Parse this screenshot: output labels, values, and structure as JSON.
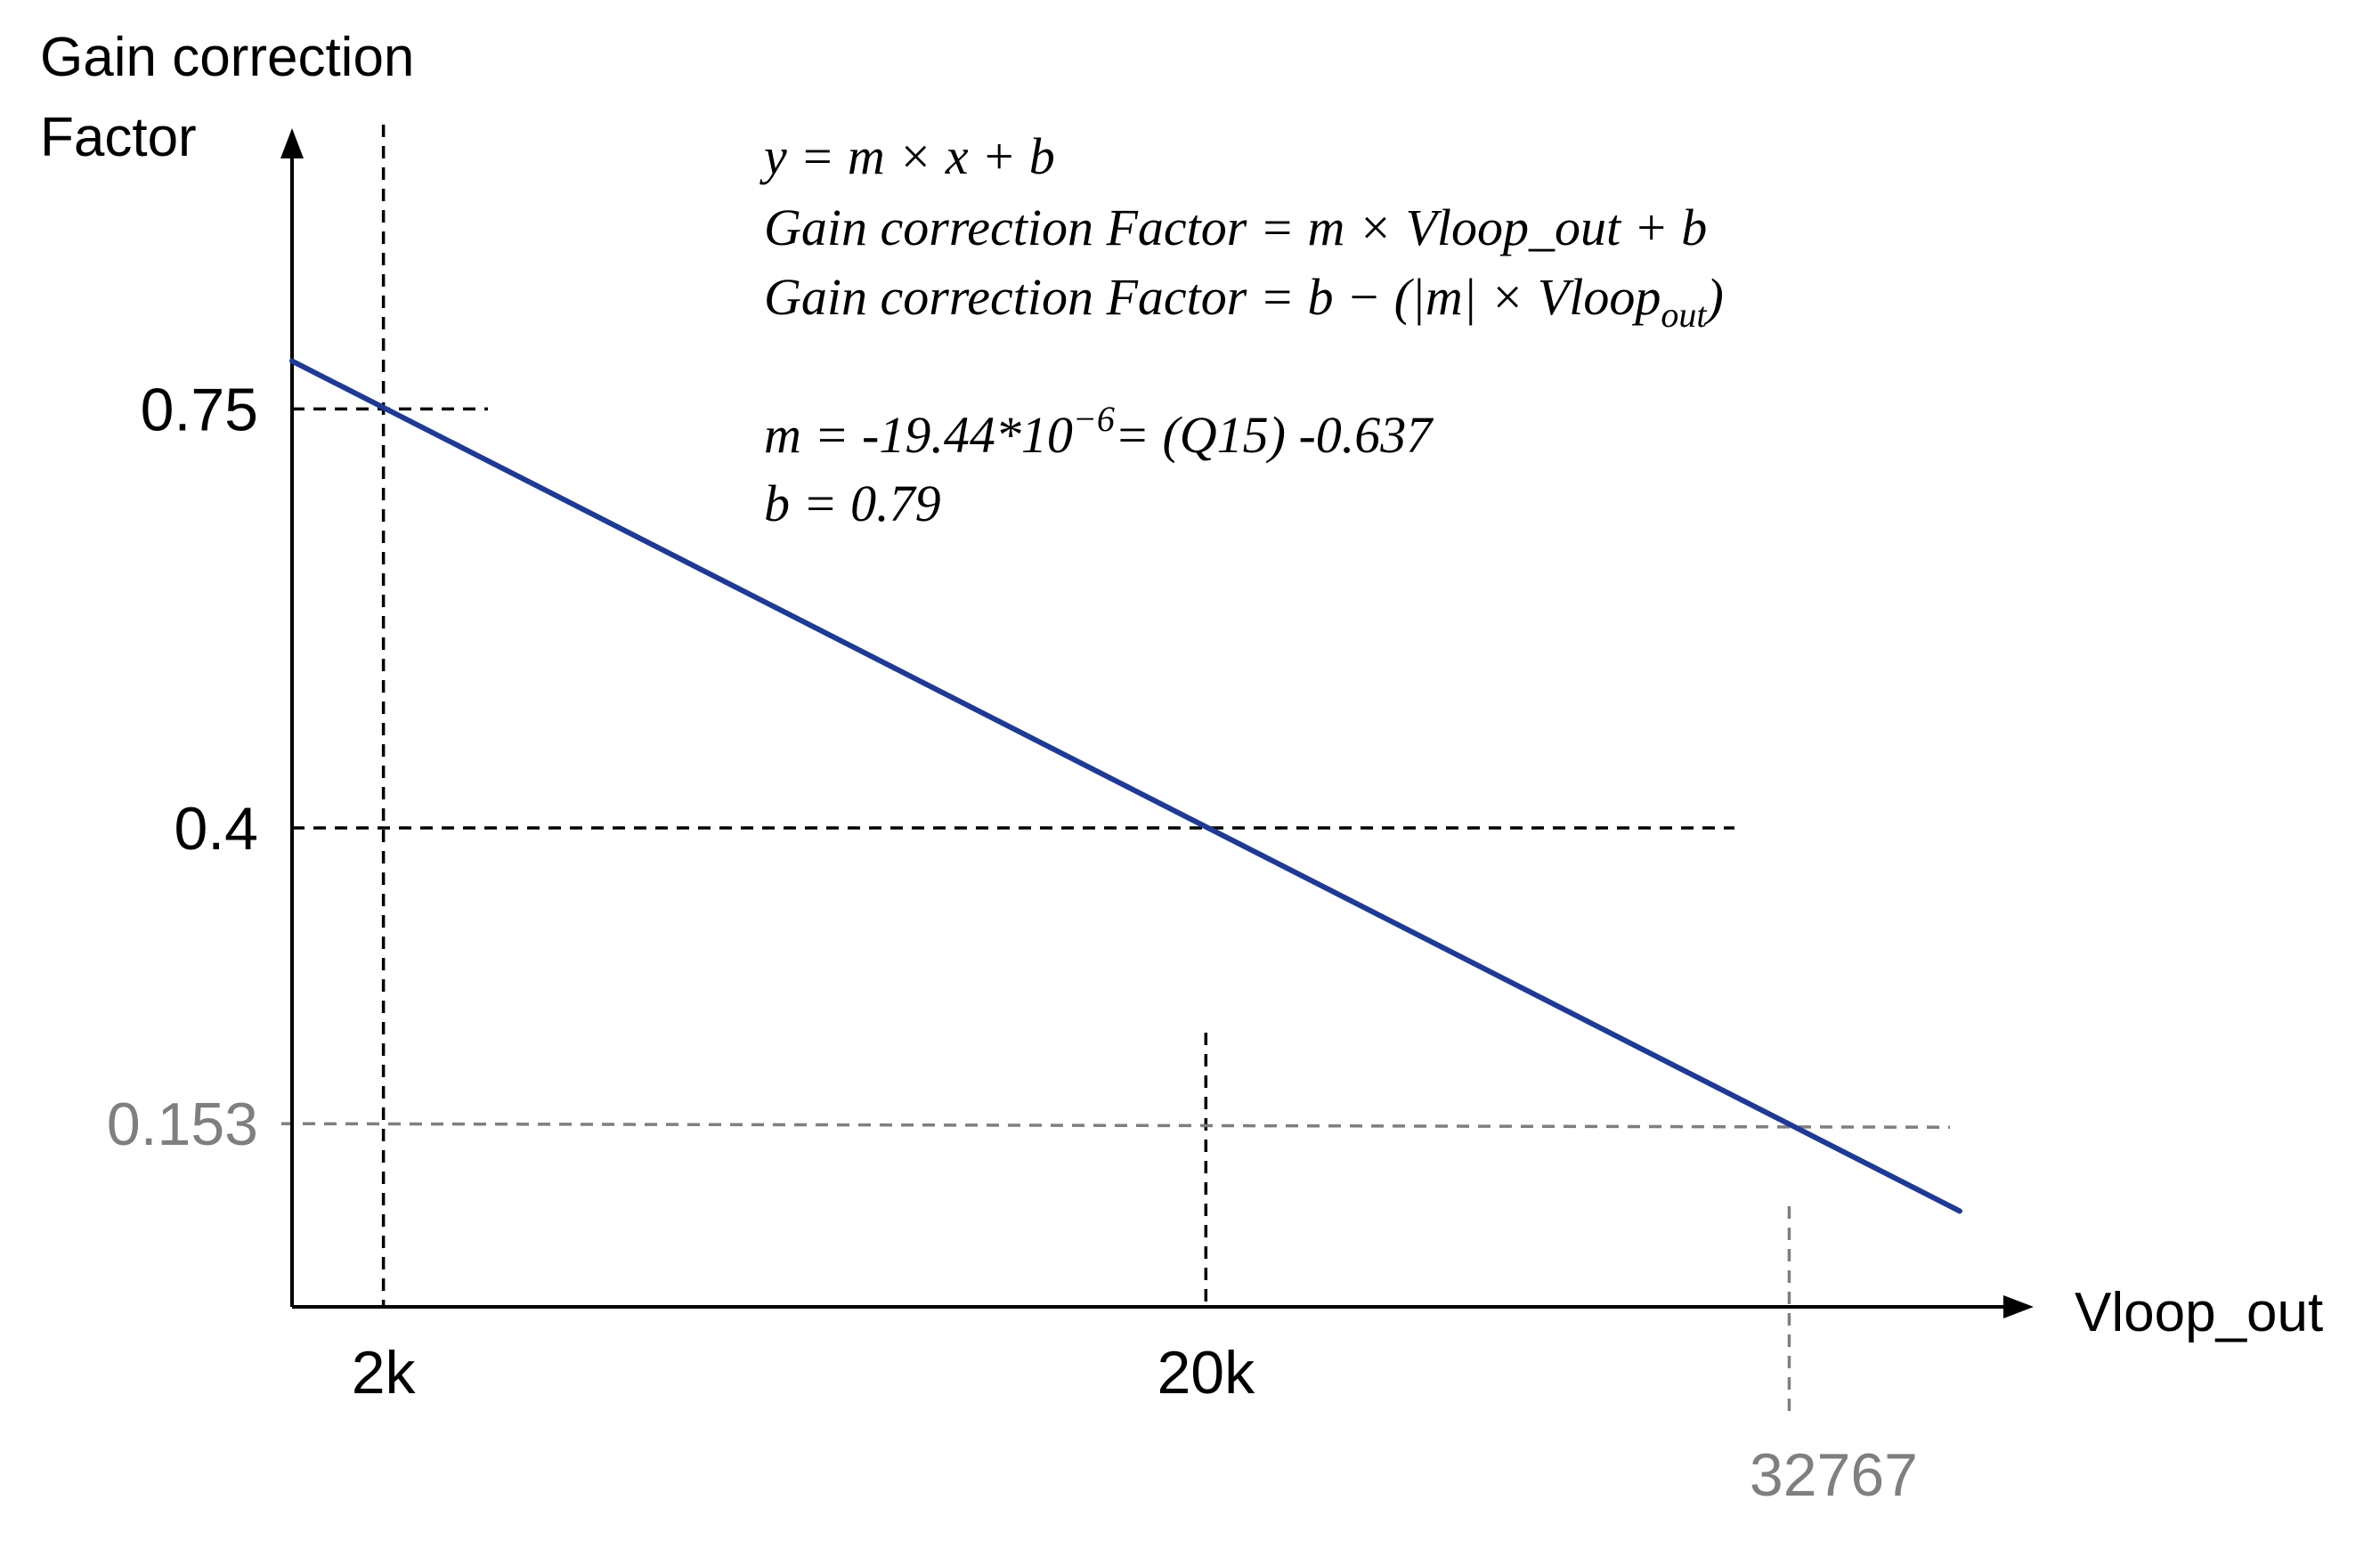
{
  "chart_data": {
    "type": "line",
    "ylabel_line1": "Gain correction",
    "ylabel_line2": "Factor",
    "xlabel": "Vloop_out",
    "xlim": [
      0,
      38000
    ],
    "ylim": [
      0.0,
      0.98
    ],
    "series": [
      {
        "x": [
          0,
          36500
        ],
        "y": [
          0.79,
          0.08
        ]
      }
    ],
    "x_ticks": [
      {
        "value": 2000,
        "label": "2k",
        "color": "#000000"
      },
      {
        "value": 20000,
        "label": "20k",
        "color": "#000000"
      },
      {
        "value": 32767,
        "label": "32767",
        "color": "#7f7f7f"
      }
    ],
    "y_ticks": [
      {
        "value": 0.75,
        "label": "0.75",
        "color": "#000000"
      },
      {
        "value": 0.4,
        "label": "0.4",
        "color": "#000000"
      },
      {
        "value": 0.153,
        "label": "0.153",
        "color": "#7f7f7f"
      }
    ],
    "colors": {
      "line": "#1f3a93",
      "axis": "#000000",
      "guide_dark": "#000000",
      "guide_gray": "#7f7f7f"
    }
  },
  "equations": {
    "line1": "y = m × x + b",
    "line2": "Gain correction Factor = m × Vloop_out + b",
    "line3_main": "Gain correction Factor = b  − (|m| × Vloop",
    "line3_sub": "out",
    "line3_end": ")",
    "line4_main": "m = -19.44*10",
    "line4_sup": "−6",
    "line4_end": "= (Q15) -0.637",
    "line5": "b = 0.79"
  }
}
